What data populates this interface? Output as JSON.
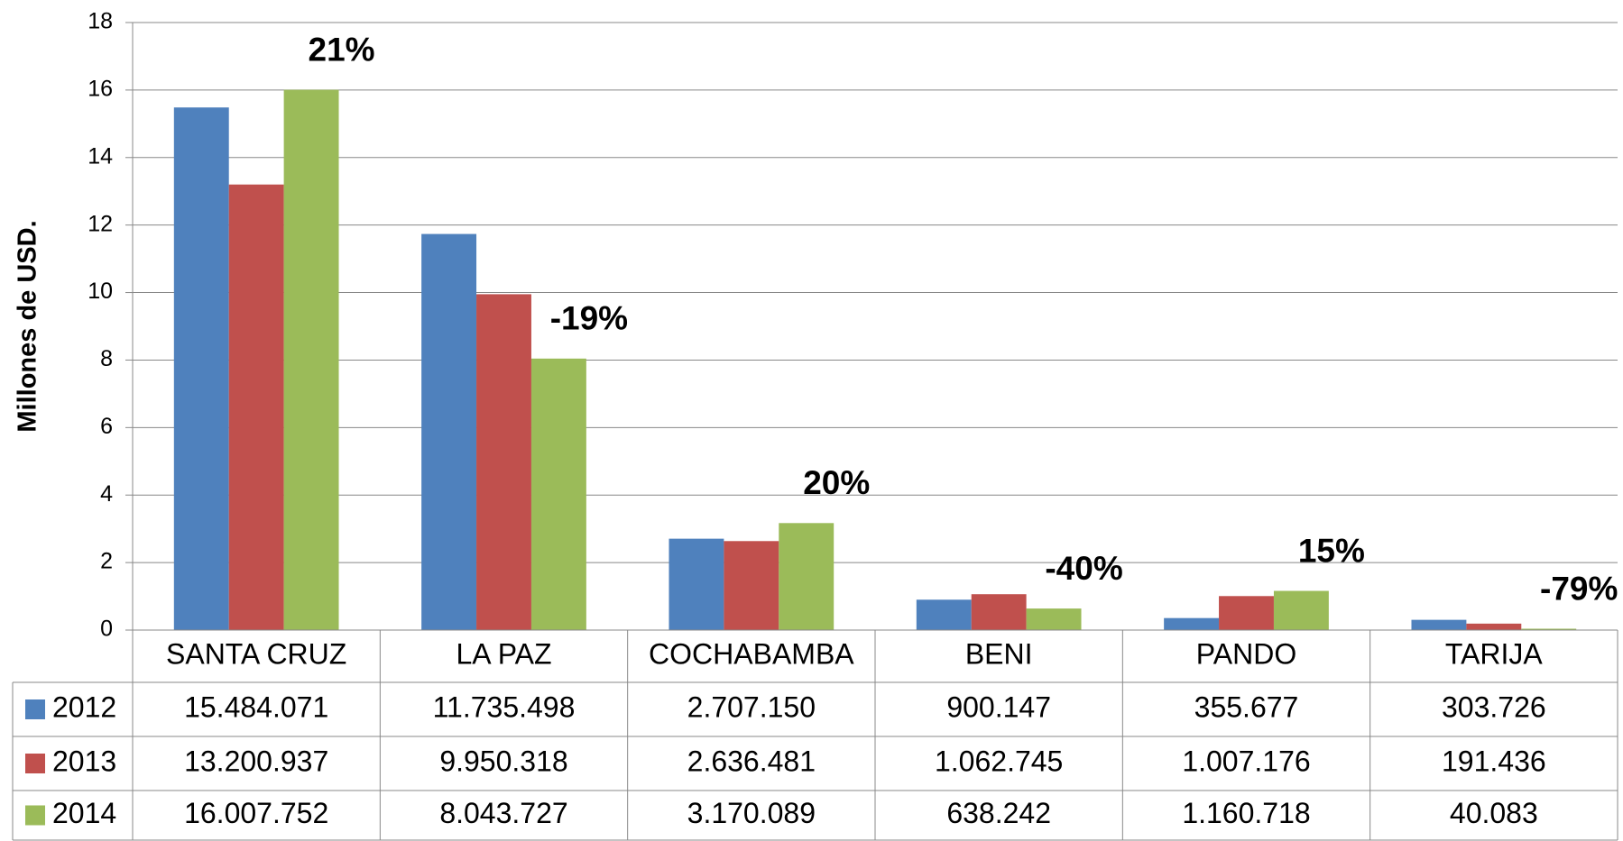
{
  "chart_data": {
    "type": "bar",
    "y_label": "Millones de USD.",
    "categories": [
      "SANTA CRUZ",
      "LA PAZ",
      "COCHABAMBA",
      "BENI",
      "PANDO",
      "TARIJA"
    ],
    "series": [
      {
        "name": "2012",
        "color": "#4f81bd",
        "values": [
          15.484071,
          11.735498,
          2.70715,
          0.900147,
          0.355677,
          0.303726
        ],
        "value_labels": [
          "15.484.071",
          "11.735.498",
          "2.707.150",
          "900.147",
          "355.677",
          "303.726"
        ]
      },
      {
        "name": "2013",
        "color": "#c0504d",
        "values": [
          13.200937,
          9.950318,
          2.636481,
          1.062745,
          1.007176,
          0.191436
        ],
        "value_labels": [
          "13.200.937",
          "9.950.318",
          "2.636.481",
          "1.062.745",
          "1.007.176",
          "191.436"
        ]
      },
      {
        "name": "2014",
        "color": "#9bbb59",
        "values": [
          16.007752,
          8.043727,
          3.170089,
          0.638242,
          1.160718,
          0.040083
        ],
        "value_labels": [
          "16.007.752",
          "8.043.727",
          "3.170.089",
          "638.242",
          "1.160.718",
          "40.083"
        ]
      }
    ],
    "change_labels": [
      "21%",
      "-19%",
      "20%",
      "-40%",
      "15%",
      "-79%"
    ],
    "ylim": [
      0,
      18
    ],
    "yticks": [
      0,
      2,
      4,
      6,
      8,
      10,
      12,
      14,
      16,
      18
    ],
    "grid": true
  }
}
